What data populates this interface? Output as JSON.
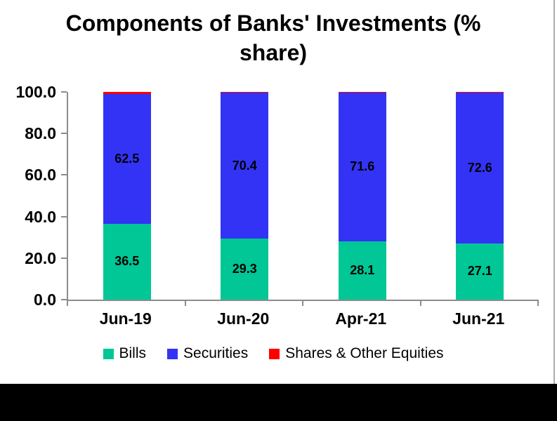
{
  "window": {
    "background": "#FFFFFF",
    "bottom_band_color": "#000000",
    "right_edge_line_color": "#ABABAB"
  },
  "chart_data": {
    "type": "bar",
    "stacked": true,
    "title": "Components of Banks' Investments (% share)",
    "title_lines": [
      "Components of Banks' Investments (%",
      "share)"
    ],
    "title_color": "#000000",
    "axis_color": "#8C8C8C",
    "categories": [
      "Jun-19",
      "Jun-20",
      "Apr-21",
      "Jun-21"
    ],
    "series": [
      {
        "name": "Bills",
        "color": "#00C795",
        "values": [
          36.5,
          29.3,
          28.1,
          27.1
        ],
        "show_labels": true
      },
      {
        "name": "Securities",
        "color": "#3333F5",
        "values": [
          62.5,
          70.4,
          71.6,
          72.6
        ],
        "show_labels": true
      },
      {
        "name": "Shares & Other Equities",
        "color": "#FF0000",
        "values": [
          1.0,
          0.3,
          0.3,
          0.3
        ],
        "show_labels": false
      }
    ],
    "ylim": [
      0,
      100
    ],
    "yticks": [
      {
        "label": "100.0",
        "value": 100
      },
      {
        "label": "80.0",
        "value": 80
      },
      {
        "label": "60.0",
        "value": 60
      },
      {
        "label": "40.0",
        "value": 40
      },
      {
        "label": "20.0",
        "value": 20
      },
      {
        "label": "0.0",
        "value": 0
      }
    ],
    "grid": false,
    "legend_position": "bottom"
  }
}
